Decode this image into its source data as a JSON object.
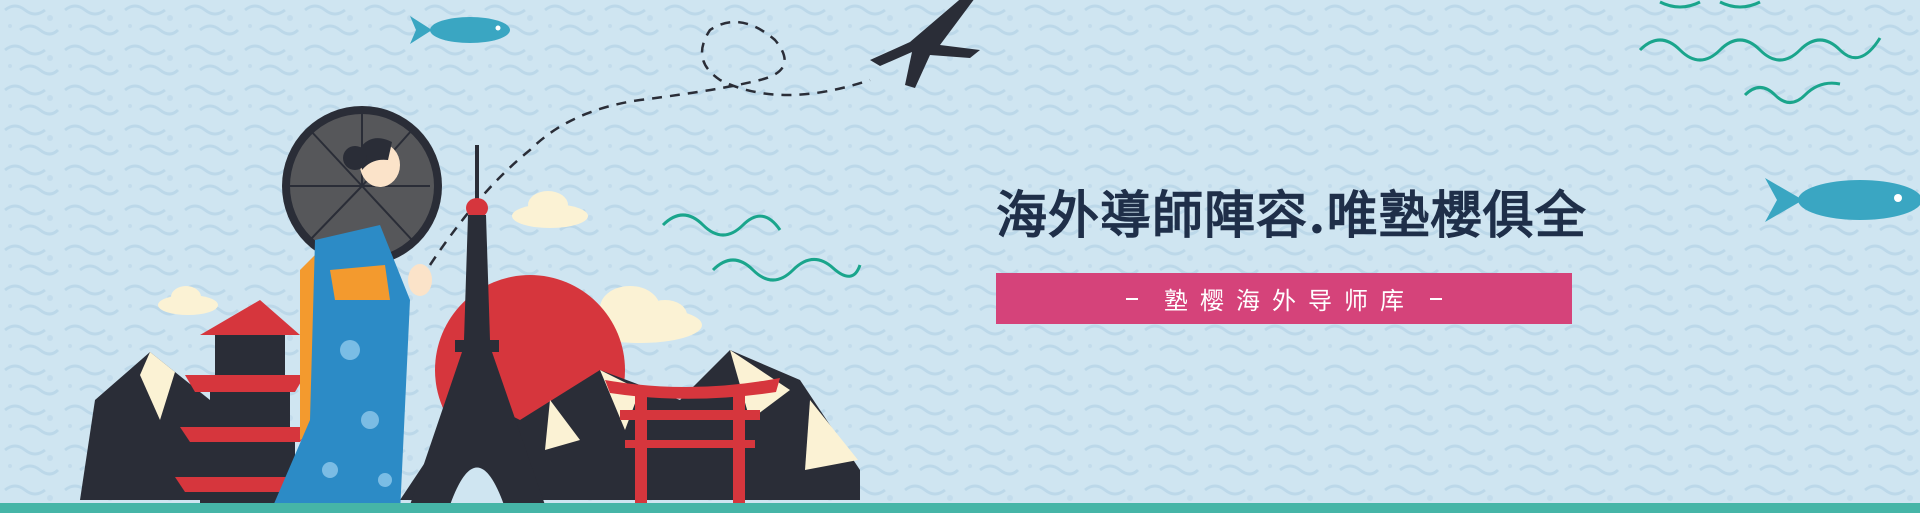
{
  "headline": "海外導師陣容.唯塾櫻俱全",
  "ribbon": {
    "label": "塾樱海外导师库"
  },
  "colors": {
    "sky": "#cfe5f1",
    "headline": "#1f2f49",
    "ribbon": "#d5437a",
    "sun": "#d6363d",
    "mountain": "#2a2d37",
    "snow": "#fbf2d4",
    "teal": "#46b5a7",
    "fish": "#3aa6c2",
    "wave": "#1aa58c",
    "kimono": "#2c8bc6",
    "torii": "#d6363d"
  },
  "icons": [
    "airplane-icon",
    "fish-icon",
    "wave-icon",
    "cloud-icon",
    "umbrella-icon",
    "pagoda-icon",
    "tower-icon",
    "torii-gate-icon",
    "sun-icon",
    "mountain-icon",
    "geisha-icon"
  ]
}
